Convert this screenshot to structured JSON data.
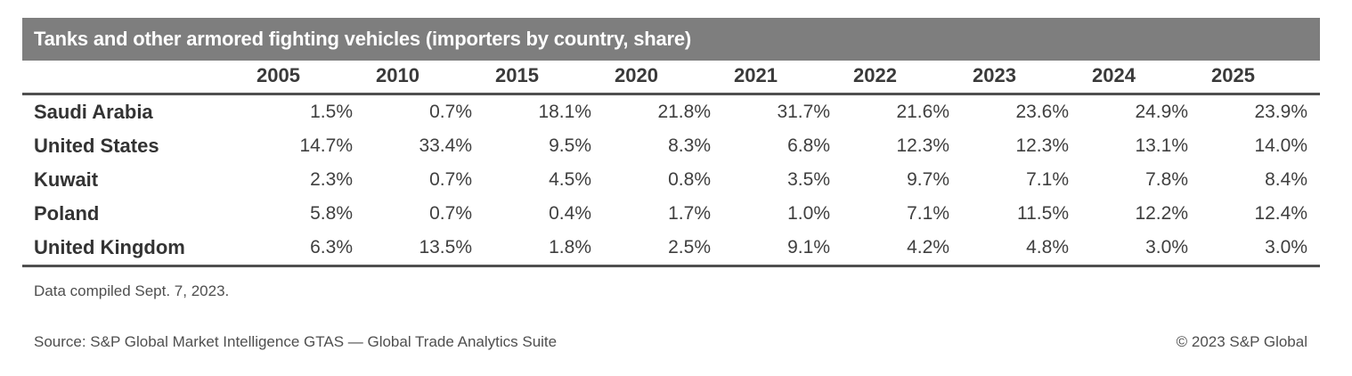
{
  "title_bar": {
    "text": "Tanks and other armored fighting vehicles (importers by country, share)"
  },
  "table": {
    "years": [
      "2005",
      "2010",
      "2015",
      "2020",
      "2021",
      "2022",
      "2023",
      "2024",
      "2025"
    ],
    "rows": [
      {
        "country": "Saudi Arabia",
        "cells": [
          "1.5%",
          "0.7%",
          "18.1%",
          "21.8%",
          "31.7%",
          "21.6%",
          "23.6%",
          "24.9%",
          "23.9%"
        ]
      },
      {
        "country": "United States",
        "cells": [
          "14.7%",
          "33.4%",
          "9.5%",
          "8.3%",
          "6.8%",
          "12.3%",
          "12.3%",
          "13.1%",
          "14.0%"
        ]
      },
      {
        "country": "Kuwait",
        "cells": [
          "2.3%",
          "0.7%",
          "4.5%",
          "0.8%",
          "3.5%",
          "9.7%",
          "7.1%",
          "7.8%",
          "8.4%"
        ]
      },
      {
        "country": "Poland",
        "cells": [
          "5.8%",
          "0.7%",
          "0.4%",
          "1.7%",
          "1.0%",
          "7.1%",
          "11.5%",
          "12.2%",
          "12.4%"
        ]
      },
      {
        "country": "United Kingdom",
        "cells": [
          "6.3%",
          "13.5%",
          "1.8%",
          "2.5%",
          "9.1%",
          "4.2%",
          "4.8%",
          "3.0%",
          "3.0%"
        ]
      }
    ]
  },
  "footer": {
    "note": "Data compiled Sept. 7, 2023.",
    "source": "Source: S&P Global Market Intelligence GTAS — Global Trade Analytics Suite",
    "copyright": "© 2023 S&P Global"
  },
  "colors": {
    "title_bar_bg": "#7e7e7e",
    "title_text": "#ffffff",
    "header_text": "#3a3a3a",
    "value_text": "#3f3f3f",
    "footer_text": "#4f4f4f",
    "rule": "#4f4f4f"
  },
  "chart_data": {
    "type": "table",
    "title": "Tanks and other armored fighting vehicles (importers by country, share)",
    "columns": [
      "2005",
      "2010",
      "2015",
      "2020",
      "2021",
      "2022",
      "2023",
      "2024",
      "2025"
    ],
    "row_labels": [
      "Saudi Arabia",
      "United States",
      "Kuwait",
      "Poland",
      "United Kingdom"
    ],
    "unit": "percent share",
    "values": [
      [
        1.5,
        0.7,
        18.1,
        21.8,
        31.7,
        21.6,
        23.6,
        24.9,
        23.9
      ],
      [
        14.7,
        33.4,
        9.5,
        8.3,
        6.8,
        12.3,
        12.3,
        13.1,
        14.0
      ],
      [
        2.3,
        0.7,
        4.5,
        0.8,
        3.5,
        9.7,
        7.1,
        7.8,
        8.4
      ],
      [
        5.8,
        0.7,
        0.4,
        1.7,
        1.0,
        7.1,
        11.5,
        12.2,
        12.4
      ],
      [
        6.3,
        13.5,
        1.8,
        2.5,
        9.1,
        4.2,
        4.8,
        3.0,
        3.0
      ]
    ],
    "note": "Data compiled Sept. 7, 2023.",
    "source": "Source: S&P Global Market Intelligence GTAS — Global Trade Analytics Suite",
    "copyright": "© 2023 S&P Global"
  }
}
